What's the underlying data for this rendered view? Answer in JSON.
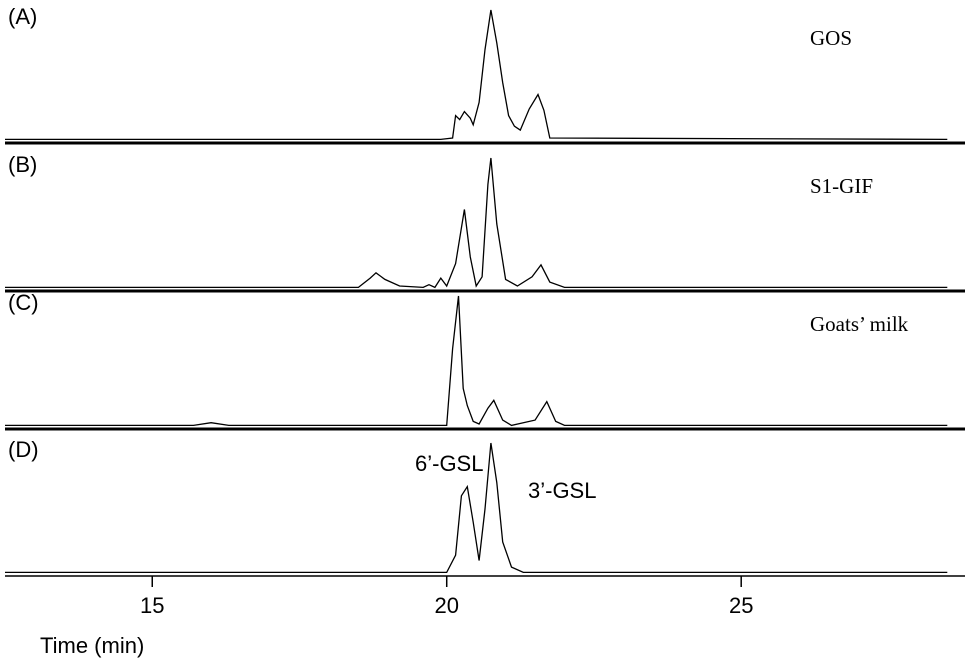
{
  "chart_data": [
    {
      "type": "line",
      "label": "(A)",
      "name": "GOS",
      "color": "#000000",
      "xlim": [
        12.5,
        28.8
      ],
      "ylim": [
        0,
        100
      ],
      "x": [
        12.5,
        19.9,
        20.1,
        20.15,
        20.22,
        20.3,
        20.4,
        20.45,
        20.55,
        20.65,
        20.75,
        20.85,
        20.95,
        21.05,
        21.15,
        21.25,
        21.4,
        21.55,
        21.65,
        21.75,
        28.5
      ],
      "values": [
        2,
        2,
        3,
        20,
        17,
        23,
        18,
        13,
        30,
        70,
        100,
        75,
        45,
        20,
        12,
        9,
        25,
        36,
        24,
        3,
        2
      ]
    },
    {
      "type": "line",
      "label": "(B)",
      "name": "S1-GIF",
      "color": "#000000",
      "xlim": [
        12.5,
        28.8
      ],
      "ylim": [
        0,
        100
      ],
      "x": [
        12.5,
        18.5,
        18.7,
        18.8,
        18.95,
        19.2,
        19.6,
        19.7,
        19.8,
        19.9,
        20.0,
        20.15,
        20.3,
        20.4,
        20.5,
        20.6,
        20.7,
        20.75,
        20.85,
        21.0,
        21.2,
        21.45,
        21.6,
        21.75,
        22.0,
        28.5
      ],
      "values": [
        2,
        2,
        9,
        13,
        8,
        3,
        2,
        4,
        2,
        9,
        3,
        20,
        61,
        25,
        3,
        10,
        80,
        100,
        50,
        8,
        3,
        10,
        19,
        6,
        2,
        2
      ]
    },
    {
      "type": "line",
      "label": "(C)",
      "name": "Goats’ milk",
      "color": "#000000",
      "xlim": [
        12.5,
        28.8
      ],
      "ylim": [
        0,
        100
      ],
      "x": [
        12.5,
        15.7,
        16.0,
        16.3,
        20.0,
        20.1,
        20.2,
        20.28,
        20.35,
        20.45,
        20.55,
        20.7,
        20.8,
        20.95,
        21.1,
        21.5,
        21.7,
        21.85,
        22.0,
        28.5
      ],
      "values": [
        2,
        2,
        4,
        2,
        2,
        60,
        100,
        30,
        17,
        5,
        3,
        15,
        21,
        6,
        2,
        6,
        20,
        5,
        2,
        2
      ]
    },
    {
      "type": "line",
      "label": "(D)",
      "name": null,
      "color": "#000000",
      "xlim": [
        12.5,
        28.8
      ],
      "ylim": [
        0,
        100
      ],
      "x": [
        12.5,
        20.0,
        20.15,
        20.25,
        20.35,
        20.45,
        20.55,
        20.65,
        20.75,
        20.85,
        20.95,
        21.1,
        21.3,
        28.5
      ],
      "values": [
        2,
        2,
        15,
        60,
        67,
        40,
        11,
        50,
        100,
        70,
        25,
        6,
        2,
        2
      ],
      "annotations": [
        "6’-GSL",
        "3’-GSL"
      ],
      "xticks": [
        15,
        20,
        25
      ],
      "xlabel": "Time (min)"
    }
  ]
}
